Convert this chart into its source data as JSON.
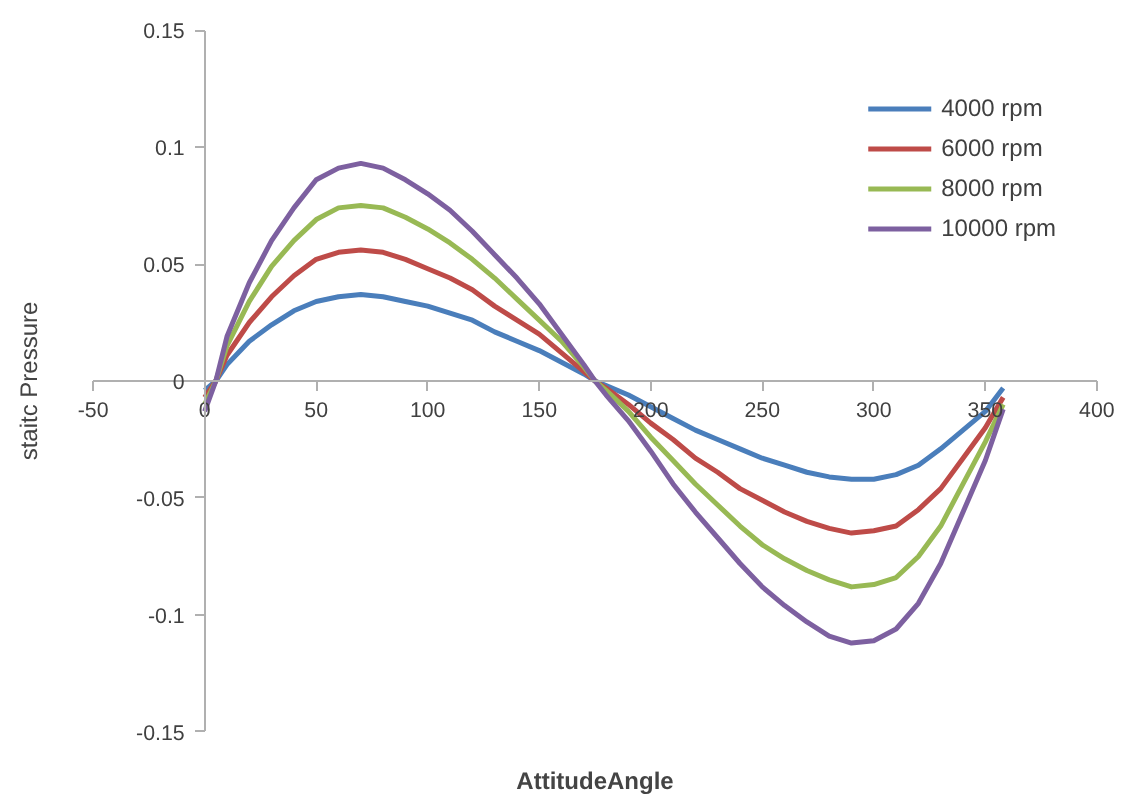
{
  "chart_data": {
    "type": "line",
    "xlabel": "AttitudeAngle",
    "ylabel": "staitc Pressure",
    "x": [
      0,
      5,
      10,
      20,
      30,
      40,
      50,
      60,
      70,
      80,
      90,
      100,
      110,
      120,
      130,
      140,
      150,
      160,
      170,
      175,
      180,
      190,
      200,
      210,
      220,
      230,
      240,
      250,
      260,
      270,
      280,
      290,
      300,
      310,
      320,
      330,
      340,
      350,
      358
    ],
    "series": [
      {
        "name": "4000 rpm",
        "color": "#4a7ebb",
        "values": [
          -0.004,
          0,
          0.007,
          0.017,
          0.024,
          0.03,
          0.034,
          0.036,
          0.037,
          0.036,
          0.034,
          0.032,
          0.029,
          0.026,
          0.021,
          0.017,
          0.013,
          0.008,
          0.003,
          0,
          -0.002,
          -0.006,
          -0.011,
          -0.016,
          -0.021,
          -0.025,
          -0.029,
          -0.033,
          -0.036,
          -0.039,
          -0.041,
          -0.042,
          -0.042,
          -0.04,
          -0.036,
          -0.029,
          -0.021,
          -0.013,
          -0.003
        ]
      },
      {
        "name": "6000 rpm",
        "color": "#be4b48",
        "values": [
          -0.007,
          0,
          0.011,
          0.025,
          0.036,
          0.045,
          0.052,
          0.055,
          0.056,
          0.055,
          0.052,
          0.048,
          0.044,
          0.039,
          0.032,
          0.026,
          0.02,
          0.012,
          0.004,
          0,
          -0.003,
          -0.01,
          -0.018,
          -0.025,
          -0.033,
          -0.039,
          -0.046,
          -0.051,
          -0.056,
          -0.06,
          -0.063,
          -0.065,
          -0.064,
          -0.062,
          -0.055,
          -0.046,
          -0.033,
          -0.02,
          -0.007
        ]
      },
      {
        "name": "8000 rpm",
        "color": "#98b954",
        "values": [
          -0.01,
          0,
          0.015,
          0.034,
          0.049,
          0.06,
          0.069,
          0.074,
          0.075,
          0.074,
          0.07,
          0.065,
          0.059,
          0.052,
          0.044,
          0.035,
          0.026,
          0.017,
          0.006,
          0,
          -0.004,
          -0.013,
          -0.024,
          -0.034,
          -0.044,
          -0.053,
          -0.062,
          -0.07,
          -0.076,
          -0.081,
          -0.085,
          -0.088,
          -0.087,
          -0.084,
          -0.075,
          -0.062,
          -0.044,
          -0.026,
          -0.01
        ]
      },
      {
        "name": "10000 rpm",
        "color": "#7d60a0",
        "values": [
          -0.013,
          0,
          0.019,
          0.042,
          0.06,
          0.074,
          0.086,
          0.091,
          0.093,
          0.091,
          0.086,
          0.08,
          0.073,
          0.064,
          0.054,
          0.044,
          0.033,
          0.02,
          0.007,
          0,
          -0.006,
          -0.017,
          -0.03,
          -0.044,
          -0.056,
          -0.067,
          -0.078,
          -0.088,
          -0.096,
          -0.103,
          -0.109,
          -0.112,
          -0.111,
          -0.106,
          -0.095,
          -0.078,
          -0.056,
          -0.034,
          -0.012
        ]
      }
    ],
    "xlim": [
      -50,
      400
    ],
    "xticks": [
      -50,
      0,
      50,
      100,
      150,
      200,
      250,
      300,
      350,
      400
    ],
    "ylim": [
      -0.15,
      0.15
    ],
    "yticks": [
      -0.15,
      -0.1,
      -0.05,
      0,
      0.05,
      0.1,
      0.15
    ],
    "grid": false,
    "legend": "top right",
    "marker": "none",
    "line_style": "solid"
  }
}
